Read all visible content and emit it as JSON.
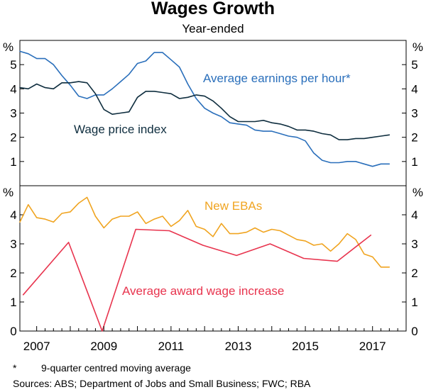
{
  "title": "Wages Growth",
  "subtitle": "Year-ended",
  "colors": {
    "earnings": "#2a6fbb",
    "wpi": "#0f2e3f",
    "ebas": "#f0a420",
    "award": "#e8344e"
  },
  "chart_data": [
    {
      "type": "line",
      "panel": "top",
      "ylim": [
        0,
        6
      ],
      "yticks": [
        1,
        2,
        3,
        4,
        5
      ],
      "ylabel_left": "%",
      "ylabel_right": "%",
      "xlim": [
        2006.5,
        2018.0
      ],
      "series": [
        {
          "name": "Average earnings per hour*",
          "label": "Average earnings per hour*",
          "color_key": "earnings",
          "x": [
            2006.5,
            2006.75,
            2007.0,
            2007.25,
            2007.5,
            2007.75,
            2008.0,
            2008.25,
            2008.5,
            2008.75,
            2009.0,
            2009.25,
            2009.5,
            2009.75,
            2010.0,
            2010.25,
            2010.5,
            2010.75,
            2011.0,
            2011.25,
            2011.5,
            2011.75,
            2012.0,
            2012.25,
            2012.5,
            2012.75,
            2013.0,
            2013.25,
            2013.5,
            2013.75,
            2014.0,
            2014.25,
            2014.5,
            2014.75,
            2015.0,
            2015.25,
            2015.5,
            2015.75,
            2016.0,
            2016.25,
            2016.5,
            2016.75,
            2017.0,
            2017.25,
            2017.5
          ],
          "values": [
            5.55,
            5.45,
            5.25,
            5.25,
            5.0,
            4.55,
            4.15,
            3.7,
            3.6,
            3.75,
            3.75,
            4.0,
            4.3,
            4.6,
            5.05,
            5.15,
            5.5,
            5.5,
            5.2,
            4.9,
            4.2,
            3.6,
            3.2,
            3.0,
            2.85,
            2.6,
            2.55,
            2.5,
            2.3,
            2.25,
            2.25,
            2.15,
            2.05,
            2.0,
            1.85,
            1.35,
            1.05,
            0.95,
            0.95,
            1.0,
            1.0,
            0.9,
            0.8,
            0.9,
            0.9
          ]
        },
        {
          "name": "Wage price index",
          "label": "Wage price index",
          "color_key": "wpi",
          "x": [
            2006.5,
            2006.75,
            2007.0,
            2007.25,
            2007.5,
            2007.75,
            2008.0,
            2008.25,
            2008.5,
            2008.75,
            2009.0,
            2009.25,
            2009.5,
            2009.75,
            2010.0,
            2010.25,
            2010.5,
            2010.75,
            2011.0,
            2011.25,
            2011.5,
            2011.75,
            2012.0,
            2012.25,
            2012.5,
            2012.75,
            2013.0,
            2013.25,
            2013.5,
            2013.75,
            2014.0,
            2014.25,
            2014.5,
            2014.75,
            2015.0,
            2015.25,
            2015.5,
            2015.75,
            2016.0,
            2016.25,
            2016.5,
            2016.75,
            2017.0,
            2017.25,
            2017.5
          ],
          "values": [
            4.05,
            4.0,
            4.2,
            4.05,
            4.0,
            4.25,
            4.25,
            4.3,
            4.25,
            3.8,
            3.15,
            2.95,
            3.0,
            3.05,
            3.65,
            3.9,
            3.9,
            3.85,
            3.8,
            3.6,
            3.65,
            3.75,
            3.7,
            3.5,
            3.2,
            2.85,
            2.65,
            2.65,
            2.65,
            2.7,
            2.6,
            2.55,
            2.45,
            2.3,
            2.3,
            2.25,
            2.15,
            2.1,
            1.9,
            1.9,
            1.95,
            1.95,
            2.0,
            2.05,
            2.1
          ]
        }
      ]
    },
    {
      "type": "line",
      "panel": "bottom",
      "ylim": [
        0,
        5
      ],
      "yticks": [
        0,
        1,
        2,
        3,
        4
      ],
      "ylabel_left": "%",
      "ylabel_right": "%",
      "xlim": [
        2006.5,
        2018.0
      ],
      "xticks": [
        2007,
        2009,
        2011,
        2013,
        2015,
        2017
      ],
      "series": [
        {
          "name": "New EBAs",
          "label": "New EBAs",
          "color_key": "ebas",
          "x": [
            2006.5,
            2006.75,
            2007.0,
            2007.25,
            2007.5,
            2007.75,
            2008.0,
            2008.25,
            2008.5,
            2008.75,
            2009.0,
            2009.25,
            2009.5,
            2009.75,
            2010.0,
            2010.25,
            2010.5,
            2010.75,
            2011.0,
            2011.25,
            2011.5,
            2011.75,
            2012.0,
            2012.25,
            2012.5,
            2012.75,
            2013.0,
            2013.25,
            2013.5,
            2013.75,
            2014.0,
            2014.25,
            2014.5,
            2014.75,
            2015.0,
            2015.25,
            2015.5,
            2015.75,
            2016.0,
            2016.25,
            2016.5,
            2016.75,
            2017.0,
            2017.25,
            2017.5
          ],
          "values": [
            3.75,
            4.35,
            3.9,
            3.85,
            3.75,
            4.05,
            4.1,
            4.4,
            4.6,
            3.95,
            3.55,
            3.85,
            3.95,
            3.95,
            4.1,
            3.7,
            3.85,
            3.95,
            3.6,
            3.8,
            4.15,
            3.6,
            3.5,
            3.25,
            3.7,
            3.35,
            3.35,
            3.4,
            3.55,
            3.4,
            3.5,
            3.45,
            3.3,
            3.15,
            3.1,
            2.95,
            3.0,
            2.75,
            3.0,
            3.35,
            3.15,
            2.65,
            2.55,
            2.2,
            2.2
          ]
        },
        {
          "name": "Average award wage increase",
          "label": "Average award wage increase",
          "color_key": "award",
          "x": [
            2006.6,
            2007.95,
            2008.95,
            2009.95,
            2010.95,
            2011.95,
            2012.95,
            2013.95,
            2014.95,
            2015.95,
            2016.95
          ],
          "values": [
            1.25,
            3.05,
            0.0,
            3.5,
            3.45,
            2.95,
            2.6,
            3.0,
            2.5,
            2.4,
            3.3
          ]
        }
      ]
    }
  ],
  "footnote": {
    "marker": "*",
    "text": "9-quarter centred moving average"
  },
  "sources": "Sources: ABS; Department of Jobs and Small Business; FWC; RBA"
}
